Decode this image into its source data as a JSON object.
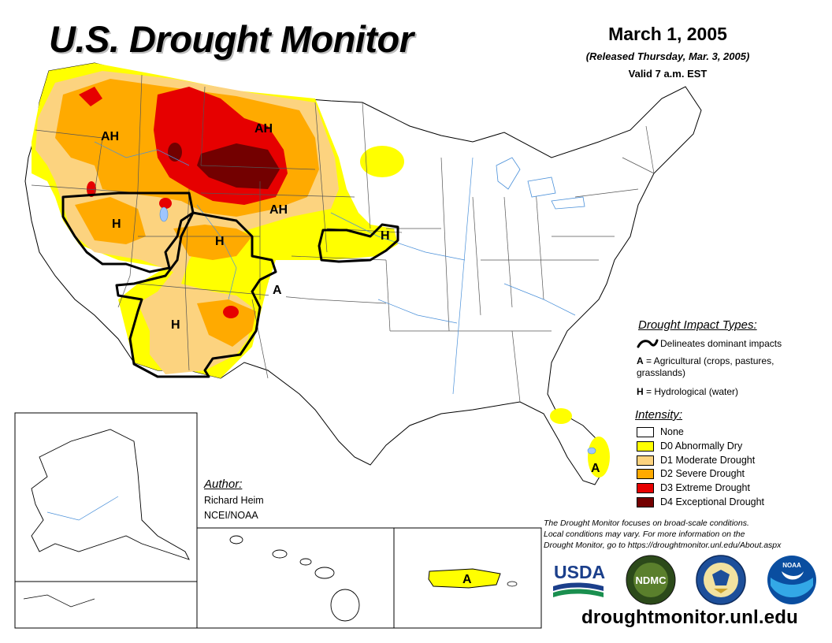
{
  "header": {
    "title": "U.S. Drought Monitor",
    "date": "March 1, 2005",
    "released": "(Released Thursday, Mar. 3, 2005)",
    "valid": "Valid 7 a.m. EST"
  },
  "impact_legend": {
    "heading": "Drought Impact Types:",
    "delineates": "Delineates dominant impacts",
    "agricultural_key": "A",
    "agricultural_text": " = Agricultural (crops, pastures,",
    "agricultural_text2": "grasslands)",
    "hydrological_key": "H",
    "hydrological_text": " = Hydrological (water)"
  },
  "intensity_legend": {
    "heading": "Intensity:",
    "items": [
      {
        "label": "None",
        "color": "#ffffff"
      },
      {
        "label": "D0 Abnormally Dry",
        "color": "#ffff00"
      },
      {
        "label": "D1 Moderate Drought",
        "color": "#fcd37f"
      },
      {
        "label": "D2 Severe Drought",
        "color": "#ffaa00"
      },
      {
        "label": "D3 Extreme Drought",
        "color": "#e60000"
      },
      {
        "label": "D4 Exceptional Drought",
        "color": "#730000"
      }
    ]
  },
  "author": {
    "heading": "Author:",
    "name": "Richard Heim",
    "org": "NCEI/NOAA"
  },
  "note": {
    "line1": "The Drought Monitor focuses on broad-scale conditions.",
    "line2": "Local conditions may vary. For more information on the",
    "line3": "Drought Monitor, go to https://droughtmonitor.unl.edu/About.aspx"
  },
  "logos": {
    "usda": "USDA",
    "ndmc": "NDMC",
    "noaa": "NOAA"
  },
  "footer_url": "droughtmonitor.unl.edu",
  "map_labels": {
    "ah_northwest": "AH",
    "ah_montana": "AH",
    "ah_plains": "AH",
    "h_nevada": "H",
    "h_utah": "H",
    "h_arizona": "H",
    "h_nebraska": "H",
    "a_colorado": "A",
    "a_florida": "A",
    "a_puerto_rico": "A"
  }
}
